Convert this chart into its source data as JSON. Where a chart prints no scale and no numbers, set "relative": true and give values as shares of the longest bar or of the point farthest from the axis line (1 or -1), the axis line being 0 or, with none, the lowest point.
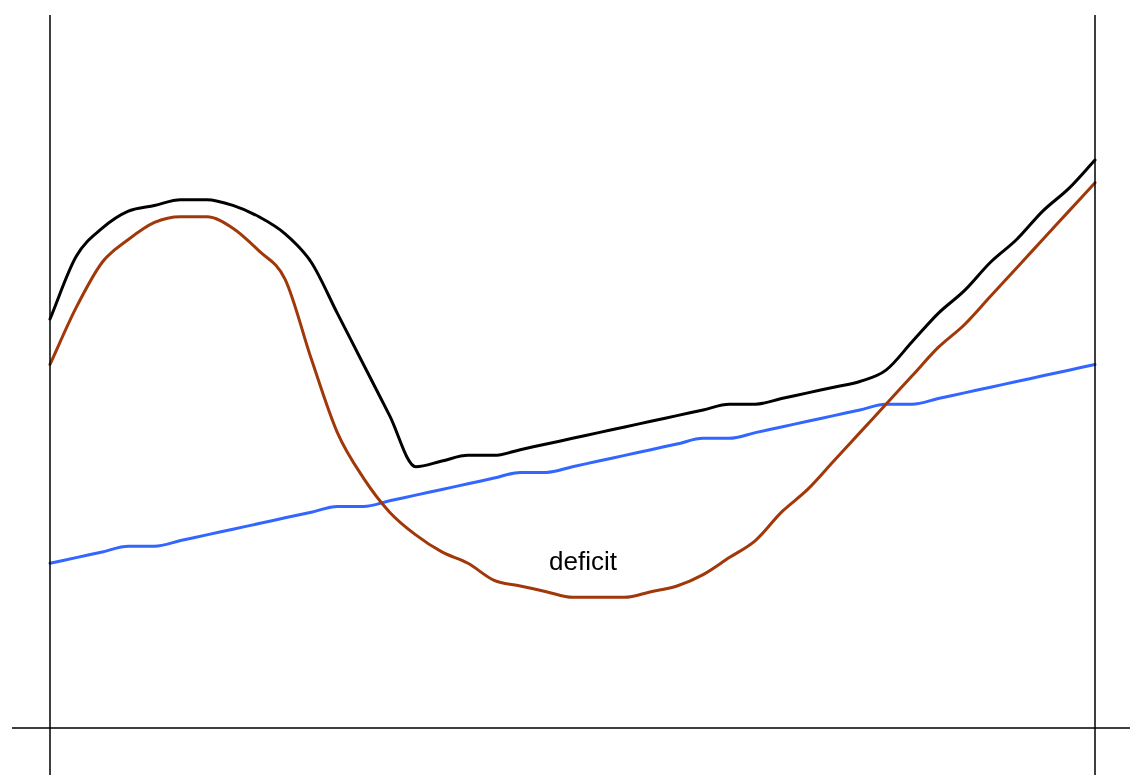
{
  "chart_data": {
    "type": "line",
    "relative": true,
    "legend": false,
    "grid": false,
    "marker": "none",
    "line_style": "solid",
    "categories": [
      null,
      null,
      null,
      null,
      null,
      null,
      null,
      null,
      null,
      null,
      null,
      null,
      null,
      null,
      null,
      null,
      null,
      null,
      null,
      null,
      null,
      null,
      null,
      null,
      null,
      null,
      null,
      null,
      null,
      null,
      null,
      null,
      null,
      null,
      null,
      null,
      null,
      null,
      null,
      null,
      null
    ],
    "series": [
      {
        "color": "#000000",
        "values": [
          0.72,
          0.83,
          0.88,
          0.91,
          0.92,
          0.93,
          0.93,
          0.92,
          0.9,
          0.87,
          0.82,
          0.73,
          0.64,
          0.55,
          0.46,
          0.47,
          0.48,
          0.48,
          0.49,
          0.5,
          0.51,
          0.52,
          0.53,
          0.54,
          0.55,
          0.56,
          0.57,
          0.57,
          0.58,
          0.59,
          0.6,
          0.61,
          0.63,
          0.68,
          0.73,
          0.77,
          0.82,
          0.86,
          0.91,
          0.95,
          1
        ]
      },
      {
        "color": "#a0380a",
        "values": [
          0.64,
          0.74,
          0.82,
          0.86,
          0.89,
          0.9,
          0.9,
          0.88,
          0.84,
          0.79,
          0.65,
          0.52,
          0.44,
          0.38,
          0.34,
          0.31,
          0.29,
          0.26,
          0.25,
          0.24,
          0.23,
          0.23,
          0.23,
          0.24,
          0.25,
          0.27,
          0.3,
          0.33,
          0.38,
          0.42,
          0.47,
          0.52,
          0.57,
          0.62,
          0.67,
          0.71,
          0.76,
          0.81,
          0.86,
          0.91,
          0.96
        ]
      },
      {
        "color": "#3366ff",
        "values": [
          0.29,
          0.3,
          0.31,
          0.32,
          0.32,
          0.33,
          0.34,
          0.35,
          0.36,
          0.37,
          0.38,
          0.39,
          0.39,
          0.4,
          0.41,
          0.42,
          0.43,
          0.44,
          0.45,
          0.45,
          0.46,
          0.47,
          0.48,
          0.49,
          0.5,
          0.51,
          0.51,
          0.52,
          0.53,
          0.54,
          0.55,
          0.56,
          0.57,
          0.57,
          0.58,
          0.59,
          0.6,
          0.61,
          0.62,
          0.63,
          0.64
        ]
      }
    ],
    "annotations": [
      "deficit"
    ]
  }
}
